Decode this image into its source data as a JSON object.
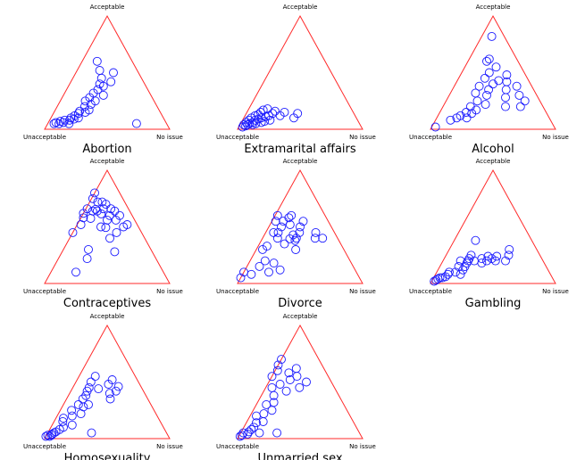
{
  "colors": {
    "triangle": "#ff2a2a",
    "points": "#1a1aff"
  },
  "chart_data": [
    {
      "type": "scatter",
      "title": "Abortion",
      "vertex_labels": {
        "top": "Acceptable",
        "left": "Unacceptable",
        "right": "No issue"
      },
      "axes": [
        "Unacceptable",
        "Acceptable",
        "No issue"
      ],
      "points": [
        [
          0.9,
          0.05
        ],
        [
          0.88,
          0.06
        ],
        [
          0.86,
          0.05
        ],
        [
          0.84,
          0.07
        ],
        [
          0.82,
          0.06
        ],
        [
          0.8,
          0.08
        ],
        [
          0.78,
          0.05
        ],
        [
          0.76,
          0.08
        ],
        [
          0.74,
          0.1
        ],
        [
          0.72,
          0.09
        ],
        [
          0.7,
          0.12
        ],
        [
          0.68,
          0.1
        ],
        [
          0.66,
          0.14
        ],
        [
          0.64,
          0.16
        ],
        [
          0.6,
          0.15
        ],
        [
          0.58,
          0.2
        ],
        [
          0.56,
          0.17
        ],
        [
          0.52,
          0.22
        ],
        [
          0.5,
          0.28
        ],
        [
          0.47,
          0.25
        ],
        [
          0.45,
          0.32
        ],
        [
          0.4,
          0.35
        ],
        [
          0.38,
          0.3
        ],
        [
          0.36,
          0.4
        ],
        [
          0.32,
          0.45
        ],
        [
          0.3,
          0.52
        ],
        [
          0.28,
          0.6
        ],
        [
          0.26,
          0.42
        ],
        [
          0.2,
          0.5
        ],
        [
          0.24,
          0.05
        ],
        [
          0.55,
          0.25
        ],
        [
          0.34,
          0.38
        ]
      ]
    },
    {
      "type": "scatter",
      "title": "Extramarital affairs",
      "vertex_labels": {
        "top": "Acceptable",
        "left": "Unacceptable",
        "right": "No issue"
      },
      "axes": [
        "Unacceptable",
        "Acceptable",
        "No issue"
      ],
      "points": [
        [
          0.95,
          0.02
        ],
        [
          0.93,
          0.04
        ],
        [
          0.92,
          0.03
        ],
        [
          0.9,
          0.06
        ],
        [
          0.88,
          0.05
        ],
        [
          0.87,
          0.08
        ],
        [
          0.85,
          0.06
        ],
        [
          0.84,
          0.1
        ],
        [
          0.82,
          0.08
        ],
        [
          0.8,
          0.12
        ],
        [
          0.79,
          0.09
        ],
        [
          0.77,
          0.13
        ],
        [
          0.76,
          0.1
        ],
        [
          0.74,
          0.15
        ],
        [
          0.72,
          0.11
        ],
        [
          0.71,
          0.17
        ],
        [
          0.69,
          0.12
        ],
        [
          0.67,
          0.18
        ],
        [
          0.65,
          0.14
        ],
        [
          0.62,
          0.16
        ],
        [
          0.6,
          0.12
        ],
        [
          0.55,
          0.15
        ],
        [
          0.5,
          0.1
        ],
        [
          0.45,
          0.14
        ],
        [
          0.9,
          0.04
        ],
        [
          0.86,
          0.04
        ],
        [
          0.83,
          0.05
        ],
        [
          0.78,
          0.06
        ],
        [
          0.75,
          0.07
        ],
        [
          0.7,
          0.08
        ]
      ]
    },
    {
      "type": "scatter",
      "title": "Alcohol",
      "vertex_labels": {
        "top": "Acceptable",
        "left": "Unacceptable",
        "right": "No issue"
      },
      "axes": [
        "Unacceptable",
        "Acceptable",
        "No issue"
      ],
      "points": [
        [
          0.95,
          0.02
        ],
        [
          0.8,
          0.08
        ],
        [
          0.74,
          0.1
        ],
        [
          0.7,
          0.12
        ],
        [
          0.66,
          0.1
        ],
        [
          0.64,
          0.15
        ],
        [
          0.6,
          0.14
        ],
        [
          0.58,
          0.2
        ],
        [
          0.55,
          0.17
        ],
        [
          0.5,
          0.25
        ],
        [
          0.48,
          0.32
        ],
        [
          0.45,
          0.22
        ],
        [
          0.42,
          0.38
        ],
        [
          0.4,
          0.3
        ],
        [
          0.36,
          0.35
        ],
        [
          0.34,
          0.45
        ],
        [
          0.3,
          0.4
        ],
        [
          0.28,
          0.5
        ],
        [
          0.24,
          0.43
        ],
        [
          0.22,
          0.35
        ],
        [
          0.2,
          0.55
        ],
        [
          0.18,
          0.42
        ],
        [
          0.15,
          0.48
        ],
        [
          0.12,
          0.38
        ],
        [
          0.25,
          0.6
        ],
        [
          0.22,
          0.62
        ],
        [
          0.14,
          0.3
        ],
        [
          0.12,
          0.25
        ],
        [
          0.18,
          0.2
        ],
        [
          0.1,
          0.82
        ],
        [
          0.3,
          0.2
        ],
        [
          0.26,
          0.28
        ]
      ]
    },
    {
      "type": "scatter",
      "title": "Contraceptives",
      "vertex_labels": {
        "top": "Acceptable",
        "left": "Unacceptable",
        "right": "No issue"
      },
      "axes": [
        "Unacceptable",
        "Acceptable",
        "No issue"
      ],
      "points": [
        [
          0.3,
          0.9
        ],
        [
          0.28,
          0.87
        ],
        [
          0.25,
          0.84
        ],
        [
          0.22,
          0.82
        ],
        [
          0.2,
          0.8
        ],
        [
          0.27,
          0.78
        ],
        [
          0.24,
          0.75
        ],
        [
          0.3,
          0.74
        ],
        [
          0.18,
          0.72
        ],
        [
          0.16,
          0.7
        ],
        [
          0.35,
          0.7
        ],
        [
          0.14,
          0.66
        ],
        [
          0.12,
          0.64
        ],
        [
          0.2,
          0.66
        ],
        [
          0.26,
          0.64
        ],
        [
          0.38,
          0.62
        ],
        [
          0.1,
          0.6
        ],
        [
          0.15,
          0.56
        ],
        [
          0.22,
          0.56
        ],
        [
          0.4,
          0.58
        ],
        [
          0.08,
          0.52
        ],
        [
          0.12,
          0.5
        ],
        [
          0.45,
          0.52
        ],
        [
          0.3,
          0.5
        ],
        [
          0.2,
          0.45
        ],
        [
          0.55,
          0.45
        ],
        [
          0.5,
          0.3
        ],
        [
          0.3,
          0.28
        ],
        [
          0.55,
          0.22
        ],
        [
          0.7,
          0.1
        ],
        [
          0.33,
          0.66
        ],
        [
          0.18,
          0.6
        ]
      ]
    },
    {
      "type": "scatter",
      "title": "Divorce",
      "vertex_labels": {
        "top": "Acceptable",
        "left": "Unacceptable",
        "right": "No issue"
      },
      "axes": [
        "Unacceptable",
        "Acceptable",
        "No issue"
      ],
      "points": [
        [
          0.95,
          0.05
        ],
        [
          0.9,
          0.1
        ],
        [
          0.85,
          0.08
        ],
        [
          0.75,
          0.15
        ],
        [
          0.7,
          0.1
        ],
        [
          0.68,
          0.2
        ],
        [
          0.62,
          0.18
        ],
        [
          0.6,
          0.12
        ],
        [
          0.65,
          0.3
        ],
        [
          0.6,
          0.33
        ],
        [
          0.55,
          0.55
        ],
        [
          0.5,
          0.57
        ],
        [
          0.48,
          0.4
        ],
        [
          0.45,
          0.45
        ],
        [
          0.42,
          0.55
        ],
        [
          0.4,
          0.5
        ],
        [
          0.38,
          0.6
        ],
        [
          0.35,
          0.38
        ],
        [
          0.33,
          0.4
        ],
        [
          0.32,
          0.52
        ],
        [
          0.3,
          0.58
        ],
        [
          0.28,
          0.45
        ],
        [
          0.25,
          0.5
        ],
        [
          0.2,
          0.55
        ],
        [
          0.18,
          0.4
        ],
        [
          0.15,
          0.45
        ],
        [
          0.12,
          0.4
        ],
        [
          0.34,
          0.43
        ],
        [
          0.45,
          0.35
        ],
        [
          0.52,
          0.5
        ],
        [
          0.27,
          0.6
        ],
        [
          0.36,
          0.55
        ]
      ]
    },
    {
      "type": "scatter",
      "title": "Gambling",
      "vertex_labels": {
        "top": "Acceptable",
        "left": "Unacceptable",
        "right": "No issue"
      },
      "axes": [
        "Unacceptable",
        "Acceptable",
        "No issue"
      ],
      "points": [
        [
          0.96,
          0.02
        ],
        [
          0.94,
          0.03
        ],
        [
          0.92,
          0.04
        ],
        [
          0.9,
          0.05
        ],
        [
          0.88,
          0.05
        ],
        [
          0.85,
          0.06
        ],
        [
          0.82,
          0.08
        ],
        [
          0.8,
          0.1
        ],
        [
          0.75,
          0.1
        ],
        [
          0.72,
          0.08
        ],
        [
          0.68,
          0.12
        ],
        [
          0.65,
          0.15
        ],
        [
          0.62,
          0.18
        ],
        [
          0.6,
          0.2
        ],
        [
          0.58,
          0.22
        ],
        [
          0.55,
          0.2
        ],
        [
          0.5,
          0.18
        ],
        [
          0.48,
          0.22
        ],
        [
          0.45,
          0.2
        ],
        [
          0.42,
          0.24
        ],
        [
          0.4,
          0.22
        ],
        [
          0.38,
          0.2
        ],
        [
          0.35,
          0.24
        ],
        [
          0.3,
          0.2
        ],
        [
          0.25,
          0.25
        ],
        [
          0.22,
          0.3
        ],
        [
          0.45,
          0.38
        ],
        [
          0.7,
          0.15
        ],
        [
          0.66,
          0.2
        ],
        [
          0.55,
          0.25
        ]
      ]
    },
    {
      "type": "scatter",
      "title": "Homosexuality",
      "vertex_labels": {
        "top": "Acceptable",
        "left": "Unacceptable",
        "right": "No issue"
      },
      "axes": [
        "Unacceptable",
        "Acceptable",
        "No issue"
      ],
      "points": [
        [
          0.98,
          0.02
        ],
        [
          0.96,
          0.03
        ],
        [
          0.95,
          0.02
        ],
        [
          0.93,
          0.03
        ],
        [
          0.92,
          0.04
        ],
        [
          0.9,
          0.05
        ],
        [
          0.88,
          0.06
        ],
        [
          0.84,
          0.08
        ],
        [
          0.8,
          0.1
        ],
        [
          0.78,
          0.15
        ],
        [
          0.76,
          0.18
        ],
        [
          0.72,
          0.12
        ],
        [
          0.68,
          0.2
        ],
        [
          0.66,
          0.25
        ],
        [
          0.6,
          0.22
        ],
        [
          0.58,
          0.3
        ],
        [
          0.55,
          0.28
        ],
        [
          0.52,
          0.35
        ],
        [
          0.48,
          0.38
        ],
        [
          0.45,
          0.42
        ],
        [
          0.42,
          0.45
        ],
        [
          0.38,
          0.5
        ],
        [
          0.35,
          0.44
        ],
        [
          0.32,
          0.55
        ],
        [
          0.28,
          0.4
        ],
        [
          0.25,
          0.48
        ],
        [
          0.22,
          0.42
        ],
        [
          0.2,
          0.52
        ],
        [
          0.18,
          0.46
        ],
        [
          0.6,
          0.05
        ],
        [
          0.5,
          0.3
        ],
        [
          0.3,
          0.35
        ]
      ]
    },
    {
      "type": "scatter",
      "title": "Unmarried sex",
      "vertex_labels": {
        "top": "Acceptable",
        "left": "Unacceptable",
        "right": "No issue"
      },
      "axes": [
        "Unacceptable",
        "Acceptable",
        "No issue"
      ],
      "points": [
        [
          0.97,
          0.02
        ],
        [
          0.95,
          0.03
        ],
        [
          0.93,
          0.05
        ],
        [
          0.9,
          0.04
        ],
        [
          0.88,
          0.06
        ],
        [
          0.85,
          0.08
        ],
        [
          0.82,
          0.1
        ],
        [
          0.8,
          0.05
        ],
        [
          0.78,
          0.14
        ],
        [
          0.75,
          0.2
        ],
        [
          0.72,
          0.15
        ],
        [
          0.68,
          0.22
        ],
        [
          0.62,
          0.3
        ],
        [
          0.6,
          0.25
        ],
        [
          0.55,
          0.32
        ],
        [
          0.52,
          0.38
        ],
        [
          0.5,
          0.45
        ],
        [
          0.45,
          0.55
        ],
        [
          0.42,
          0.48
        ],
        [
          0.38,
          0.6
        ],
        [
          0.35,
          0.65
        ],
        [
          0.32,
          0.52
        ],
        [
          0.3,
          0.58
        ],
        [
          0.28,
          0.45
        ],
        [
          0.25,
          0.55
        ],
        [
          0.22,
          0.62
        ],
        [
          0.2,
          0.5
        ],
        [
          0.3,
          0.7
        ],
        [
          0.4,
          0.42
        ],
        [
          0.66,
          0.05
        ]
      ]
    }
  ]
}
